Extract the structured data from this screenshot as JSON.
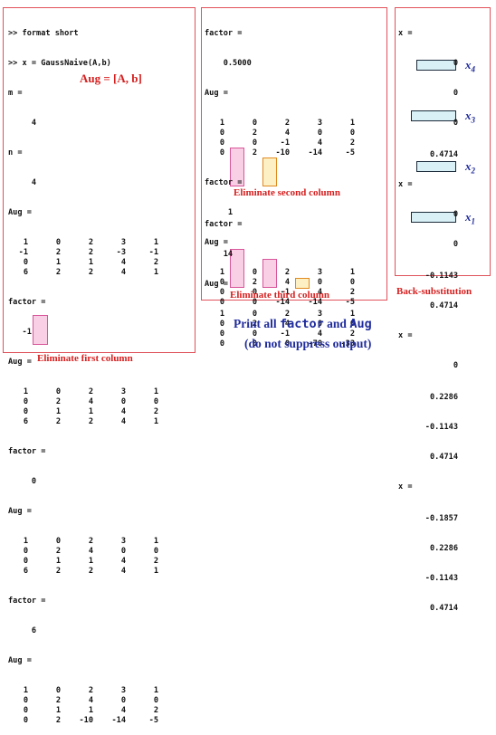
{
  "panel1": {
    "lines": [
      ">> format short",
      ">> x = GaussNaive(A,b)",
      "m =",
      "     4",
      "n =",
      "     4",
      "Aug ="
    ],
    "aug0": [
      [
        "1",
        "0",
        "2",
        "3",
        "1"
      ],
      [
        "-1",
        "2",
        "2",
        "-3",
        "-1"
      ],
      [
        "0",
        "1",
        "1",
        "4",
        "2"
      ],
      [
        "6",
        "2",
        "2",
        "4",
        "1"
      ]
    ],
    "factor1_label": "factor =",
    "factor1_value": "   -1",
    "aug1_label": "Aug =",
    "aug1": [
      [
        "1",
        "0",
        "2",
        "3",
        "1"
      ],
      [
        "0",
        "2",
        "4",
        "0",
        "0"
      ],
      [
        "0",
        "1",
        "1",
        "4",
        "2"
      ],
      [
        "6",
        "2",
        "2",
        "4",
        "1"
      ]
    ],
    "factor2_label": "factor =",
    "factor2_value": "     0",
    "aug2_label": "Aug =",
    "aug2": [
      [
        "1",
        "0",
        "2",
        "3",
        "1"
      ],
      [
        "0",
        "2",
        "4",
        "0",
        "0"
      ],
      [
        "0",
        "1",
        "1",
        "4",
        "2"
      ],
      [
        "6",
        "2",
        "2",
        "4",
        "1"
      ]
    ],
    "factor3_label": "factor =",
    "factor3_value": "     6",
    "aug3_label": "Aug =",
    "aug3": [
      [
        "1",
        "0",
        "2",
        "3",
        "1"
      ],
      [
        "0",
        "2",
        "4",
        "0",
        "0"
      ],
      [
        "0",
        "1",
        "1",
        "4",
        "2"
      ],
      [
        "0",
        "2",
        "-10",
        "-14",
        "-5"
      ]
    ],
    "annotation": "Aug = [A, b]",
    "caption": "Eliminate first column"
  },
  "panel2": {
    "factor1_label": "factor =",
    "factor1_value": "    0.5000",
    "aug1_label": "Aug =",
    "aug1": [
      [
        "1",
        "0",
        "2",
        "3",
        "1"
      ],
      [
        "0",
        "2",
        "4",
        "0",
        "0"
      ],
      [
        "0",
        "0",
        "-1",
        "4",
        "2"
      ],
      [
        "0",
        "2",
        "-10",
        "-14",
        "-5"
      ]
    ],
    "factor2_label": "factor =",
    "factor2_value": "     1",
    "aug2_label": "Aug =",
    "aug2": [
      [
        "1",
        "0",
        "2",
        "3",
        "1"
      ],
      [
        "0",
        "2",
        "4",
        "0",
        "0"
      ],
      [
        "0",
        "0",
        "-1",
        "4",
        "2"
      ],
      [
        "0",
        "0",
        "-14",
        "-14",
        "-5"
      ]
    ],
    "caption_mid": "Eliminate second column",
    "factor3_label": "factor =",
    "factor3_value": "    14",
    "aug3_label": "Aug =",
    "aug3": [
      [
        "1",
        "0",
        "2",
        "3",
        "1"
      ],
      [
        "0",
        "2",
        "4",
        "0",
        "0"
      ],
      [
        "0",
        "0",
        "-1",
        "4",
        "2"
      ],
      [
        "0",
        "0",
        "0",
        "-70",
        "-33"
      ]
    ],
    "caption": "Eliminate third column"
  },
  "panel3": {
    "x_label": "x =",
    "block1": [
      "0",
      "0",
      "0",
      "0.4714"
    ],
    "block2": [
      "0",
      "0",
      "-0.1143",
      "0.4714"
    ],
    "block3": [
      "0",
      "0.2286",
      "-0.1143",
      "0.4714"
    ],
    "block4": [
      "-0.1857",
      "0.2286",
      "-0.1143",
      "0.4714"
    ],
    "var_labels": [
      "x",
      "4",
      "x",
      "3",
      "x",
      "2",
      "x",
      "1"
    ],
    "caption": "Back-substitution"
  },
  "footer": {
    "line1_pre": "Print all ",
    "line1_code1": "factor",
    "line1_mid": " and ",
    "line1_code2": "Aug",
    "line2": "(do not suppress output)"
  },
  "colors": {
    "panel_border": "#e0525a",
    "caption_red": "#d62020",
    "note_blue": "#202c9c",
    "pink_highlight": "#f8cfe4",
    "yellow_highlight": "#fdf0c4",
    "cyan_highlight": "#d9f1f6"
  }
}
